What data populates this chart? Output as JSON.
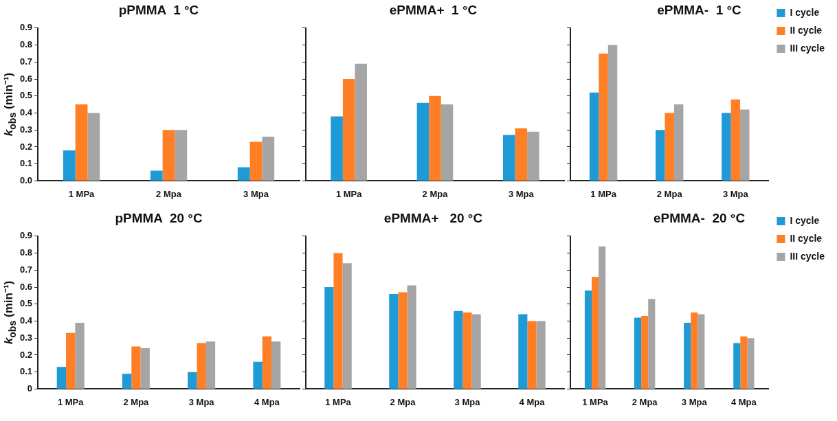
{
  "chart_data": [
    {
      "type": "bar",
      "title": "pPMMA  1 °C",
      "ylabel": "k$_{obs}$ (min⁻¹)",
      "categories": [
        "1 MPa",
        "2 Mpa",
        "3 Mpa"
      ],
      "series": [
        {
          "color": "#1e9bd7",
          "values": [
            0.18,
            0.06,
            0.08
          ]
        },
        {
          "color": "#ff7f27",
          "values": [
            0.45,
            0.3,
            0.23
          ]
        },
        {
          "color": "#a5a5a5",
          "values": [
            0.4,
            0.3,
            0.26
          ]
        }
      ],
      "ylim": [
        0,
        0.9
      ],
      "yticks": [
        {
          "value": 0,
          "label": "0.0"
        },
        0.1,
        0.2,
        0.3,
        0.4,
        0.5,
        0.6,
        0.7,
        0.8,
        0.9
      ],
      "grid": false,
      "legend": false
    },
    {
      "type": "bar",
      "title": "ePMMA+  1 °C",
      "categories": [
        "1 MPa",
        "2 Mpa",
        "3 Mpa"
      ],
      "series": [
        {
          "color": "#1e9bd7",
          "values": [
            0.38,
            0.46,
            0.27
          ]
        },
        {
          "color": "#ff7f27",
          "values": [
            0.6,
            0.5,
            0.31
          ]
        },
        {
          "color": "#a5a5a5",
          "values": [
            0.69,
            0.45,
            0.29
          ]
        }
      ],
      "ylim": [
        0,
        0.9
      ],
      "yticks": [
        0,
        0.1,
        0.2,
        0.3,
        0.4,
        0.5,
        0.6,
        0.7,
        0.8,
        0.9
      ],
      "tick_labels": "x",
      "grid": false,
      "legend": false
    },
    {
      "type": "bar",
      "title": "ePMMA-  1 °C",
      "categories": [
        "1 MPa",
        "2 Mpa",
        "3 Mpa"
      ],
      "series": [
        {
          "name": "I cycle",
          "color": "#1e9bd7",
          "values": [
            0.52,
            0.3,
            0.4
          ]
        },
        {
          "name": "II cycle",
          "color": "#ff7f27",
          "values": [
            0.75,
            0.4,
            0.48
          ]
        },
        {
          "name": "III cycle",
          "color": "#a5a5a5",
          "values": [
            0.8,
            0.45,
            0.42
          ]
        }
      ],
      "ylim": [
        0,
        0.9
      ],
      "yticks": [
        0,
        0.1,
        0.2,
        0.3,
        0.4,
        0.5,
        0.6,
        0.7,
        0.8,
        0.9
      ],
      "tick_labels": "x",
      "grid": false,
      "legend": "top right"
    },
    {
      "type": "bar",
      "title": "pPMMA  20 °C",
      "ylabel": "k$_{obs}$ (min⁻¹)",
      "categories": [
        "1 MPa",
        "2 Mpa",
        "3 Mpa",
        "4 Mpa"
      ],
      "series": [
        {
          "color": "#1e9bd7",
          "values": [
            0.13,
            0.09,
            0.1,
            0.16
          ]
        },
        {
          "color": "#ff7f27",
          "values": [
            0.33,
            0.25,
            0.27,
            0.31
          ]
        },
        {
          "color": "#a5a5a5",
          "values": [
            0.39,
            0.24,
            0.28,
            0.28
          ]
        }
      ],
      "ylim": [
        0,
        0.9
      ],
      "yticks": [
        0,
        0.1,
        0.2,
        0.3,
        0.4,
        0.5,
        0.6,
        0.7,
        0.8,
        0.9
      ],
      "grid": false,
      "legend": false
    },
    {
      "type": "bar",
      "title": "ePMMA+   20 °C",
      "categories": [
        "1 MPa",
        "2 Mpa",
        "3 Mpa",
        "4 Mpa"
      ],
      "series": [
        {
          "color": "#1e9bd7",
          "values": [
            0.6,
            0.56,
            0.46,
            0.44
          ]
        },
        {
          "color": "#ff7f27",
          "values": [
            0.8,
            0.57,
            0.45,
            0.4
          ]
        },
        {
          "color": "#a5a5a5",
          "values": [
            0.74,
            0.61,
            0.44,
            0.4
          ]
        }
      ],
      "ylim": [
        0,
        0.9
      ],
      "yticks": [
        0,
        0.1,
        0.2,
        0.3,
        0.4,
        0.5,
        0.6,
        0.7,
        0.8,
        0.9
      ],
      "tick_labels": "x",
      "grid": false,
      "legend": false
    },
    {
      "type": "bar",
      "title": "ePMMA-  20 °C",
      "categories": [
        "1 MPa",
        "2 Mpa",
        "3 Mpa",
        "4 Mpa"
      ],
      "series": [
        {
          "name": "I cycle",
          "color": "#1e9bd7",
          "values": [
            0.58,
            0.42,
            0.39,
            0.27
          ]
        },
        {
          "name": "II cycle",
          "color": "#ff7f27",
          "values": [
            0.66,
            0.43,
            0.45,
            0.31
          ]
        },
        {
          "name": "III cycle",
          "color": "#a5a5a5",
          "values": [
            0.84,
            0.53,
            0.44,
            0.3
          ]
        }
      ],
      "ylim": [
        0,
        0.9
      ],
      "yticks": [
        0,
        0.1,
        0.2,
        0.3,
        0.4,
        0.5,
        0.6,
        0.7,
        0.8,
        0.9
      ],
      "tick_labels": "x",
      "grid": false,
      "legend": "top right"
    }
  ]
}
